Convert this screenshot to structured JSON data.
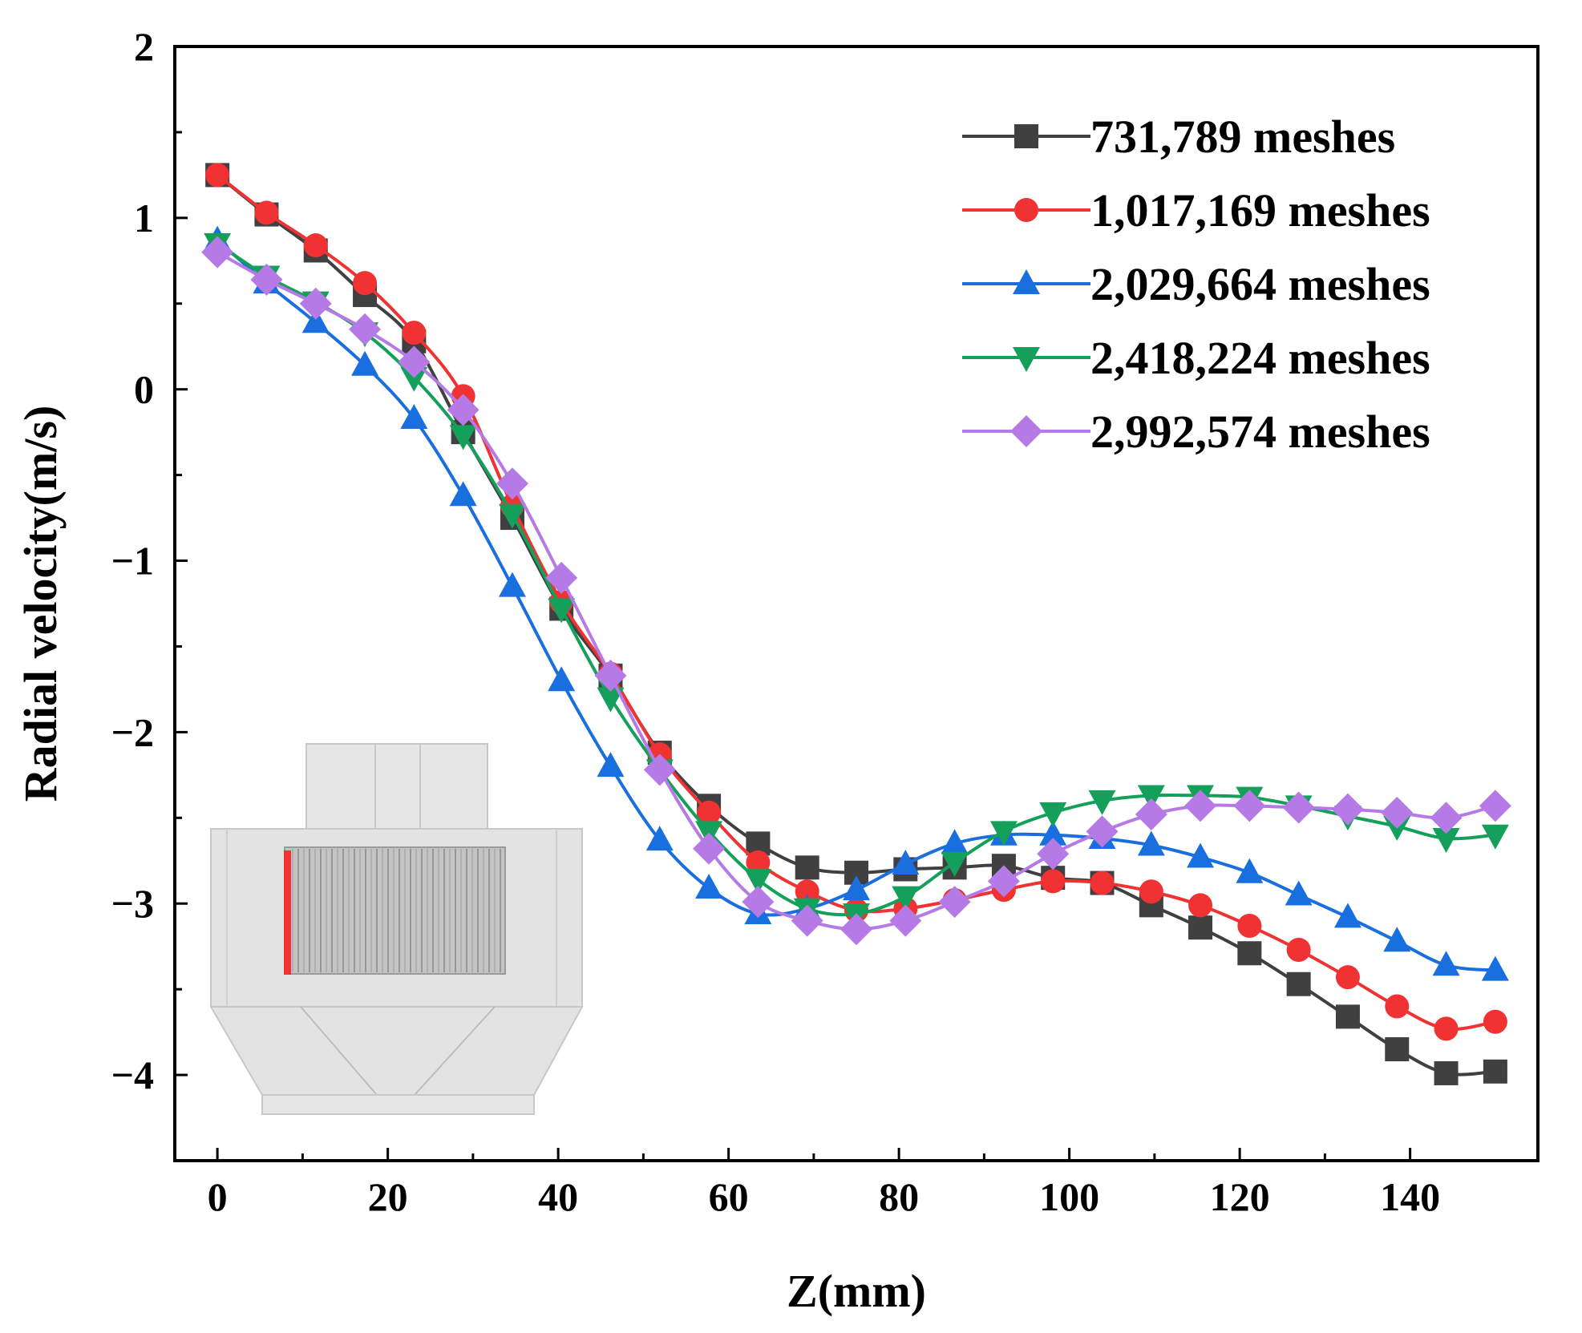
{
  "chart_data": {
    "type": "line",
    "title": "",
    "xlabel": "Z(mm)",
    "ylabel": "Radial velocity(m/s)",
    "xlim": [
      -5,
      155
    ],
    "ylim": [
      -4.5,
      2
    ],
    "xticks": [
      0,
      20,
      40,
      60,
      80,
      100,
      120,
      140
    ],
    "yticks": [
      2,
      1,
      0,
      -1,
      -2,
      -3,
      -4
    ],
    "ytick_labels": [
      "2",
      "1",
      "0",
      "−1",
      "−2",
      "−3",
      "−4"
    ],
    "legend_position": "top-right",
    "x": [
      0,
      5.77,
      11.54,
      17.31,
      23.08,
      28.85,
      34.62,
      40.38,
      46.15,
      51.92,
      57.69,
      63.46,
      69.23,
      75.0,
      80.77,
      86.54,
      92.31,
      98.08,
      103.85,
      109.62,
      115.38,
      121.15,
      126.92,
      132.69,
      138.46,
      144.23,
      150.0
    ],
    "series": [
      {
        "name": "731,789 meshes",
        "color": "#404040",
        "marker": "square",
        "values": [
          1.25,
          1.02,
          0.81,
          0.55,
          0.28,
          -0.25,
          -0.75,
          -1.28,
          -1.67,
          -2.12,
          -2.43,
          -2.65,
          -2.79,
          -2.82,
          -2.8,
          -2.79,
          -2.78,
          -2.85,
          -2.88,
          -3.01,
          -3.14,
          -3.29,
          -3.47,
          -3.66,
          -3.85,
          -3.99,
          -3.98
        ]
      },
      {
        "name": "1,017,169 meshes",
        "color": "#f03232",
        "marker": "circle",
        "values": [
          1.25,
          1.03,
          0.84,
          0.62,
          0.33,
          -0.04,
          -0.68,
          -1.24,
          -1.66,
          -2.13,
          -2.47,
          -2.76,
          -2.93,
          -3.04,
          -3.03,
          -2.98,
          -2.92,
          -2.87,
          -2.88,
          -2.93,
          -3.01,
          -3.13,
          -3.27,
          -3.43,
          -3.6,
          -3.73,
          -3.69
        ]
      },
      {
        "name": "2,029,664 meshes",
        "color": "#1a6fdf",
        "marker": "triangle-up",
        "values": [
          0.87,
          0.62,
          0.39,
          0.14,
          -0.17,
          -0.62,
          -1.15,
          -1.7,
          -2.2,
          -2.63,
          -2.91,
          -3.06,
          -3.03,
          -2.92,
          -2.77,
          -2.65,
          -2.6,
          -2.6,
          -2.62,
          -2.66,
          -2.73,
          -2.82,
          -2.95,
          -3.08,
          -3.22,
          -3.36,
          -3.39
        ]
      },
      {
        "name": "2,418,224 meshes",
        "color": "#14a05a",
        "marker": "triangle-down",
        "values": [
          0.85,
          0.66,
          0.51,
          0.33,
          0.07,
          -0.27,
          -0.73,
          -1.28,
          -1.8,
          -2.22,
          -2.58,
          -2.86,
          -3.03,
          -3.06,
          -2.96,
          -2.76,
          -2.58,
          -2.47,
          -2.4,
          -2.37,
          -2.37,
          -2.38,
          -2.43,
          -2.49,
          -2.55,
          -2.62,
          -2.6
        ]
      },
      {
        "name": "2,992,574 meshes",
        "color": "#b57ae6",
        "marker": "diamond",
        "values": [
          0.8,
          0.64,
          0.5,
          0.35,
          0.16,
          -0.12,
          -0.55,
          -1.1,
          -1.67,
          -2.22,
          -2.68,
          -2.99,
          -3.1,
          -3.15,
          -3.1,
          -2.99,
          -2.87,
          -2.71,
          -2.58,
          -2.48,
          -2.43,
          -2.43,
          -2.44,
          -2.45,
          -2.47,
          -2.5,
          -2.43
        ]
      }
    ]
  }
}
